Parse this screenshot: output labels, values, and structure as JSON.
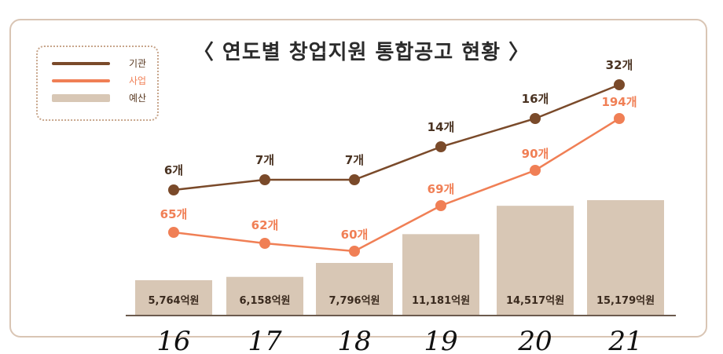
{
  "chart_data": {
    "type": "bar",
    "title": "〈 연도별 창업지원 통합공고 현황 〉",
    "categories": [
      "16",
      "17",
      "18",
      "19",
      "20",
      "21"
    ],
    "series": [
      {
        "name": "기관",
        "type": "line",
        "values": [
          6,
          7,
          7,
          14,
          16,
          32
        ],
        "labels": [
          "6개",
          "7개",
          "7개",
          "14개",
          "16개",
          "32개"
        ],
        "color": "#7a4a2a"
      },
      {
        "name": "사업",
        "type": "line",
        "values": [
          65,
          62,
          60,
          69,
          90,
          194
        ],
        "labels": [
          "65개",
          "62개",
          "60개",
          "69개",
          "90개",
          "194개"
        ],
        "color": "#f07f55"
      },
      {
        "name": "예산",
        "type": "bar",
        "values": [
          5764,
          6158,
          7796,
          11181,
          14517,
          15179
        ],
        "labels": [
          "5,764억원",
          "6,158억원",
          "7,796억원",
          "11,181억원",
          "14,517억원",
          "15,179억원"
        ],
        "color": "#d8c7b5"
      }
    ],
    "legend_position": "top-left",
    "xlabel": "",
    "ylabel": ""
  }
}
